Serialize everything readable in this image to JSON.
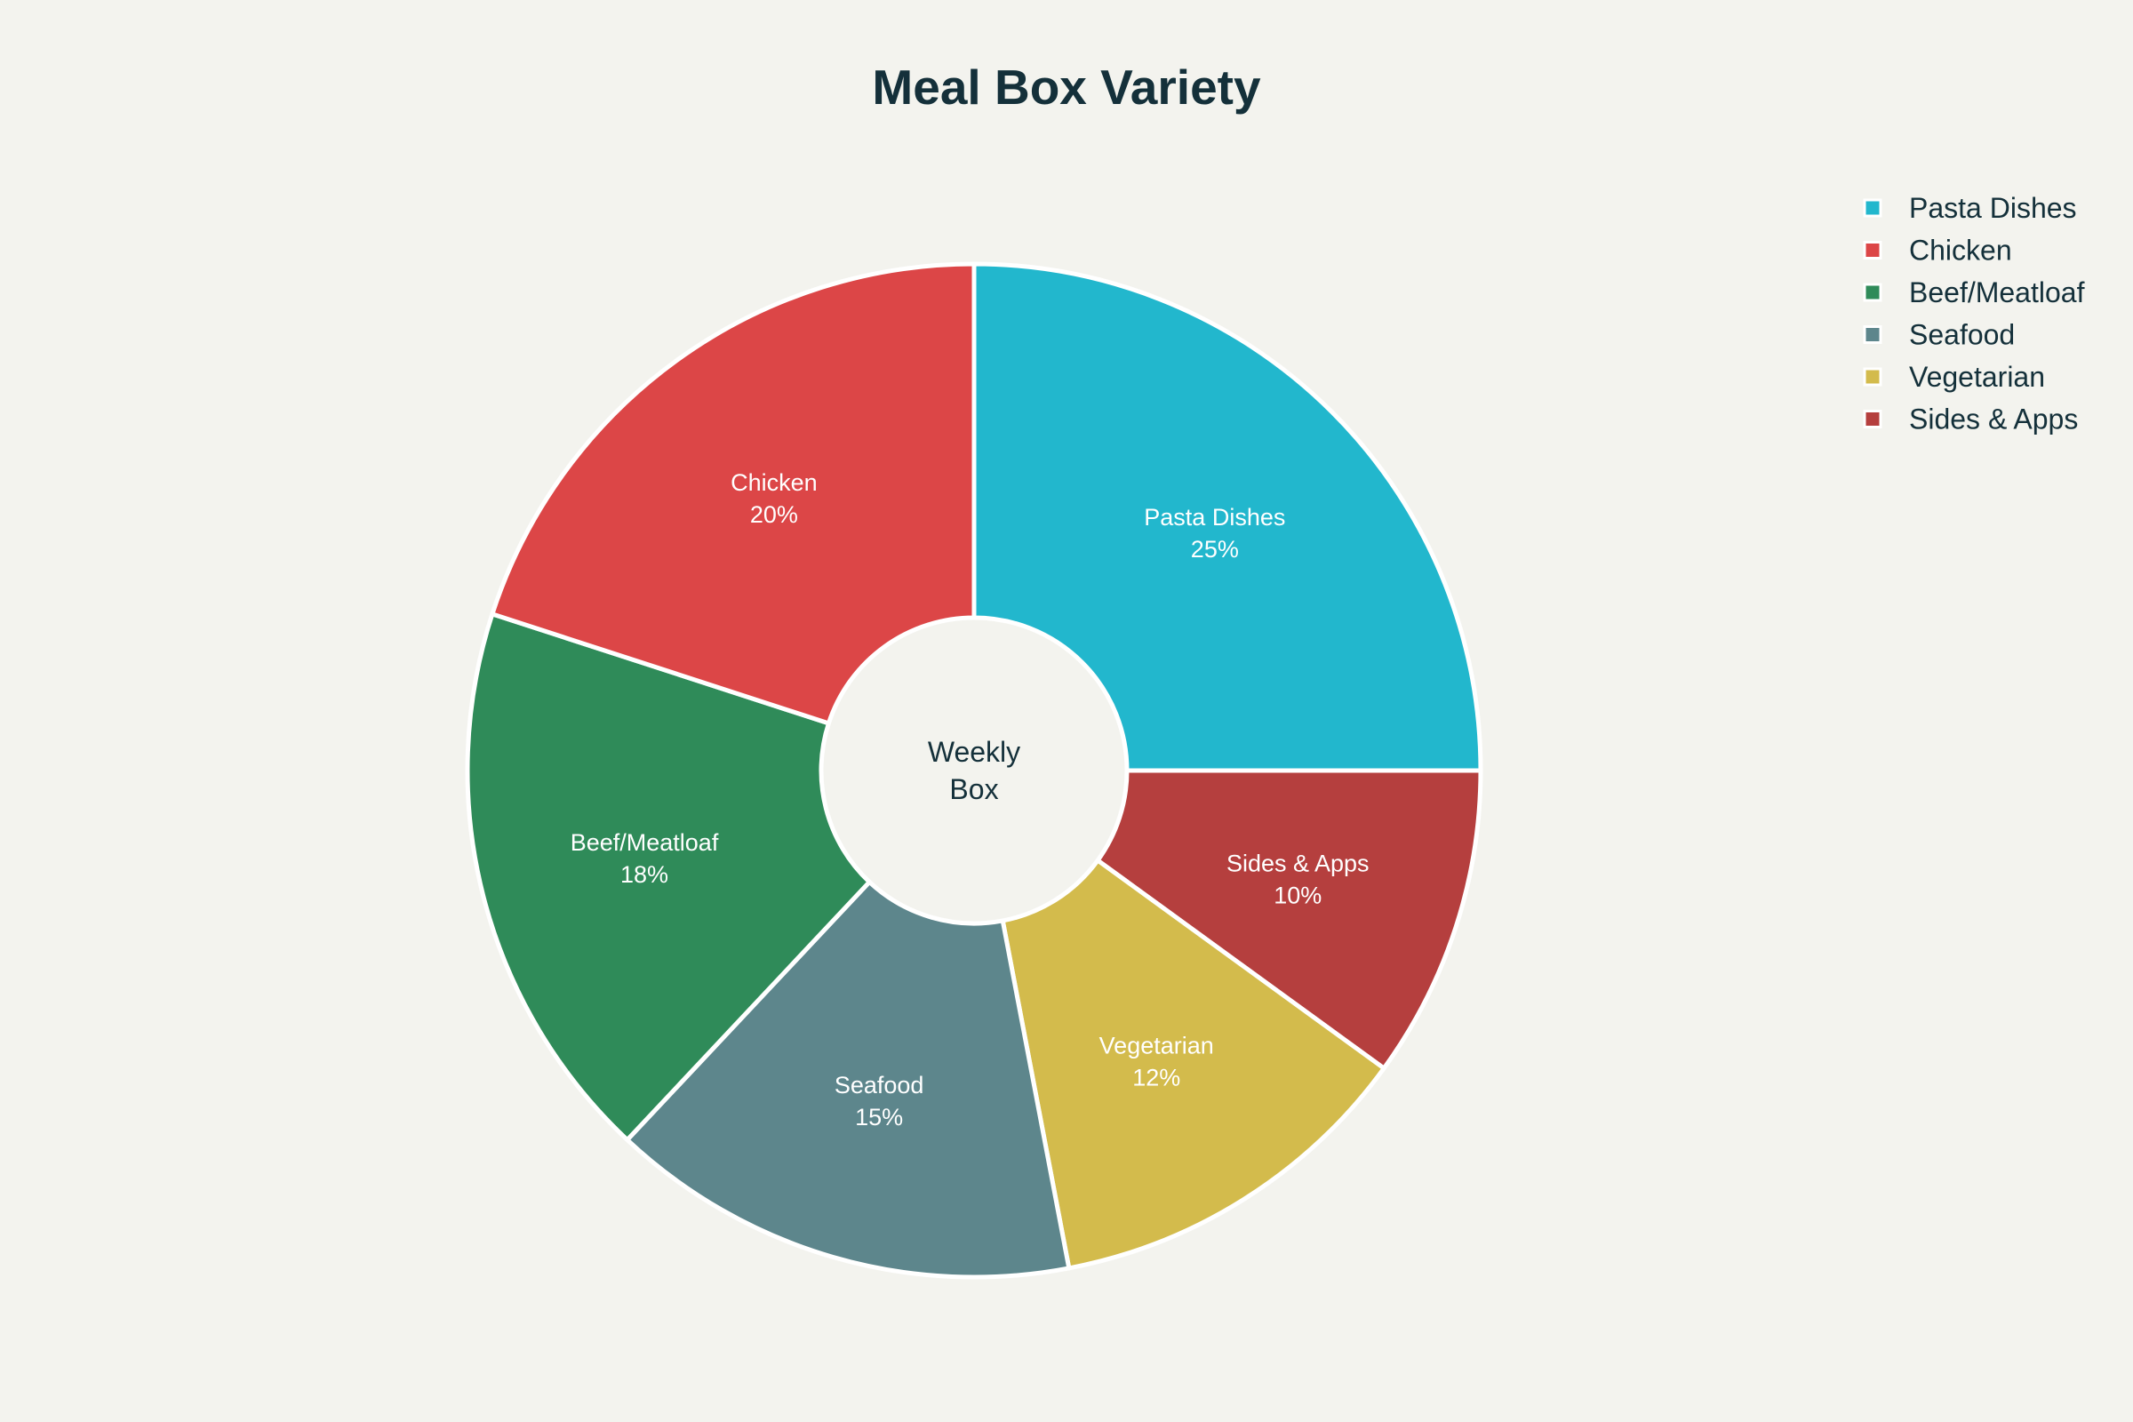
{
  "chart_data": {
    "type": "pie",
    "title": "Meal Box Variety",
    "hole_label": [
      "Weekly",
      "Box"
    ],
    "legend_position": "top-right",
    "start_angle_deg": 90,
    "direction": "clockwise",
    "slices": [
      {
        "label": "Pasta Dishes",
        "value": 25,
        "display": "25%",
        "color": "#22b7cd"
      },
      {
        "label": "Sides & Apps",
        "value": 10,
        "display": "10%",
        "color": "#b53f3e"
      },
      {
        "label": "Vegetarian",
        "value": 12,
        "display": "12%",
        "color": "#d3bb4c"
      },
      {
        "label": "Seafood",
        "value": 15,
        "display": "15%",
        "color": "#5d868c"
      },
      {
        "label": "Beef/Meatloaf",
        "value": 18,
        "display": "18%",
        "color": "#2f8b59"
      },
      {
        "label": "Chicken",
        "value": 20,
        "display": "20%",
        "color": "#dc4647"
      }
    ],
    "legend": [
      {
        "label": "Pasta Dishes",
        "color": "#22b7cd"
      },
      {
        "label": "Chicken",
        "color": "#dc4647"
      },
      {
        "label": "Beef/Meatloaf",
        "color": "#2f8b59"
      },
      {
        "label": "Seafood",
        "color": "#5d868c"
      },
      {
        "label": "Vegetarian",
        "color": "#d3bb4c"
      },
      {
        "label": "Sides & Apps",
        "color": "#b53f3e"
      }
    ],
    "background_color": "#f3f3ee",
    "text_color": "#14303a"
  }
}
